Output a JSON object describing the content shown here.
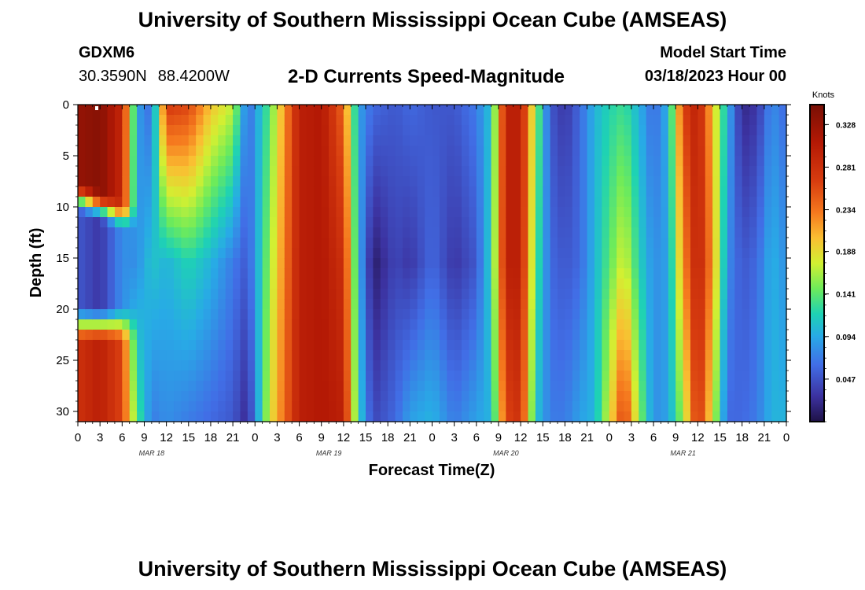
{
  "header": {
    "title": "University of Southern Mississippi Ocean Cube (AMSEAS)",
    "station_id": "GDXM6",
    "latitude": "30.3590N",
    "longitude": "88.4200W",
    "subtitle": "2-D Currents Speed-Magnitude",
    "model_start_label": "Model Start Time",
    "model_start_value": "03/18/2023 Hour 00"
  },
  "footer": {
    "title": "University of Southern Mississippi Ocean Cube (AMSEAS)"
  },
  "chart_data": {
    "type": "heatmap",
    "xlabel": "Forecast Time(Z)",
    "ylabel": "Depth (ft)",
    "x_ticks": [
      "0",
      "3",
      "6",
      "9",
      "12",
      "15",
      "18",
      "21",
      "0",
      "3",
      "6",
      "9",
      "12",
      "15",
      "18",
      "21",
      "0",
      "3",
      "6",
      "9",
      "12",
      "15",
      "18",
      "21",
      "0",
      "3",
      "6",
      "9",
      "12",
      "15",
      "18",
      "21",
      "0"
    ],
    "x_range_hours": [
      0,
      96
    ],
    "date_labels": [
      {
        "label": "MAR 18",
        "hour": 12
      },
      {
        "label": "MAR 19",
        "hour": 36
      },
      {
        "label": "MAR 20",
        "hour": 60
      },
      {
        "label": "MAR 21",
        "hour": 84
      }
    ],
    "y_ticks": [
      "0",
      "5",
      "10",
      "15",
      "20",
      "25",
      "30"
    ],
    "ylim": [
      0,
      31
    ],
    "y_inverted": true,
    "colorbar": {
      "title": "Knots",
      "ticks": [
        "0.328",
        "0.281",
        "0.234",
        "0.188",
        "0.141",
        "0.094",
        "0.047"
      ],
      "range": [
        0,
        0.35
      ]
    },
    "speed_columns_knots": [
      {
        "hour": 0,
        "top": 0.33,
        "bottom": 0.28,
        "break_depth": 9,
        "mid": 0.05
      },
      {
        "hour": 3,
        "top": 0.34,
        "bottom": 0.3,
        "break_depth": 10,
        "mid": 0.03
      },
      {
        "hour": 6,
        "top": 0.29,
        "bottom": 0.26,
        "break_depth": 11,
        "mid": 0.08
      },
      {
        "hour": 8,
        "top": 0.09,
        "bottom": 0.14,
        "mid": 0.08
      },
      {
        "hour": 10,
        "top": 0.06,
        "bottom": 0.07,
        "mid": 0.11
      },
      {
        "hour": 12,
        "top": 0.27,
        "bottom": 0.08,
        "mid": 0.1
      },
      {
        "hour": 15,
        "top": 0.26,
        "bottom": 0.07,
        "mid": 0.12
      },
      {
        "hour": 18,
        "top": 0.2,
        "bottom": 0.06,
        "mid": 0.1
      },
      {
        "hour": 21,
        "top": 0.17,
        "bottom": 0.05,
        "mid": 0.07
      },
      {
        "hour": 23,
        "top": 0.06,
        "bottom": 0.02,
        "mid": 0.05
      },
      {
        "hour": 26,
        "top": 0.14,
        "bottom": 0.18,
        "mid": 0.16
      },
      {
        "hour": 30,
        "top": 0.3,
        "bottom": 0.3,
        "mid": 0.3
      },
      {
        "hour": 33,
        "top": 0.31,
        "bottom": 0.31,
        "mid": 0.31
      },
      {
        "hour": 36,
        "top": 0.24,
        "bottom": 0.3,
        "mid": 0.28
      },
      {
        "hour": 38,
        "top": 0.09,
        "bottom": 0.12,
        "mid": 0.1
      },
      {
        "hour": 40,
        "top": 0.06,
        "bottom": 0.04,
        "mid": 0.01
      },
      {
        "hour": 43,
        "top": 0.05,
        "bottom": 0.06,
        "mid": 0.04
      },
      {
        "hour": 45,
        "top": 0.06,
        "bottom": 0.09,
        "mid": 0.03
      },
      {
        "hour": 48,
        "top": 0.05,
        "bottom": 0.1,
        "mid": 0.06
      },
      {
        "hour": 51,
        "top": 0.05,
        "bottom": 0.07,
        "mid": 0.03
      },
      {
        "hour": 54,
        "top": 0.07,
        "bottom": 0.09,
        "mid": 0.05
      },
      {
        "hour": 56,
        "top": 0.11,
        "bottom": 0.1,
        "mid": 0.12
      },
      {
        "hour": 58,
        "top": 0.3,
        "bottom": 0.26,
        "mid": 0.3
      },
      {
        "hour": 60,
        "top": 0.3,
        "bottom": 0.28,
        "mid": 0.3
      },
      {
        "hour": 62,
        "top": 0.16,
        "bottom": 0.11,
        "mid": 0.14
      },
      {
        "hour": 64,
        "top": 0.05,
        "bottom": 0.07,
        "mid": 0.06
      },
      {
        "hour": 66,
        "top": 0.03,
        "bottom": 0.07,
        "mid": 0.05
      },
      {
        "hour": 68,
        "top": 0.06,
        "bottom": 0.09,
        "mid": 0.06
      },
      {
        "hour": 70,
        "top": 0.1,
        "bottom": 0.1,
        "mid": 0.1
      },
      {
        "hour": 72,
        "top": 0.12,
        "bottom": 0.18,
        "mid": 0.14
      },
      {
        "hour": 74,
        "top": 0.13,
        "bottom": 0.27,
        "mid": 0.18
      },
      {
        "hour": 76,
        "top": 0.1,
        "bottom": 0.16,
        "mid": 0.12
      },
      {
        "hour": 78,
        "top": 0.06,
        "bottom": 0.08,
        "mid": 0.08
      },
      {
        "hour": 80,
        "top": 0.1,
        "bottom": 0.09,
        "mid": 0.09
      },
      {
        "hour": 82,
        "top": 0.26,
        "bottom": 0.16,
        "mid": 0.22
      },
      {
        "hour": 84,
        "top": 0.3,
        "bottom": 0.28,
        "mid": 0.3
      },
      {
        "hour": 86,
        "top": 0.2,
        "bottom": 0.18,
        "mid": 0.22
      },
      {
        "hour": 88,
        "top": 0.1,
        "bottom": 0.06,
        "mid": 0.08
      },
      {
        "hour": 90,
        "top": 0.02,
        "bottom": 0.06,
        "mid": 0.05
      },
      {
        "hour": 92,
        "top": 0.03,
        "bottom": 0.07,
        "mid": 0.06
      },
      {
        "hour": 94,
        "top": 0.08,
        "bottom": 0.1,
        "mid": 0.1
      },
      {
        "hour": 96,
        "top": 0.06,
        "bottom": 0.1,
        "mid": 0.08
      }
    ]
  }
}
